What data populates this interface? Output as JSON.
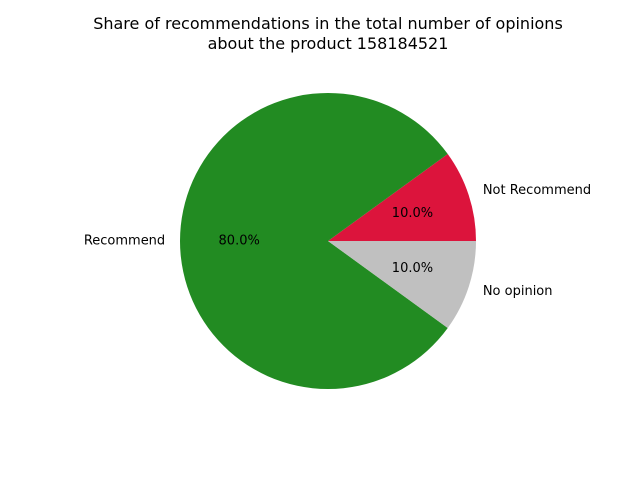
{
  "chart_data": {
    "type": "pie",
    "title_lines": [
      "Share of recommendations in the total number of opinions",
      "about the product 158184521"
    ],
    "slices": [
      {
        "label": "Not Recommend",
        "value": 10.0,
        "pct_label": "10.0%",
        "color": "#dc143c"
      },
      {
        "label": "Recommend",
        "value": 80.0,
        "pct_label": "80.0%",
        "color": "#228b22"
      },
      {
        "label": "No opinion",
        "value": 10.0,
        "pct_label": "10.0%",
        "color": "#c0c0c0"
      }
    ],
    "start_angle_deg": 0,
    "direction": "counterclockwise"
  }
}
